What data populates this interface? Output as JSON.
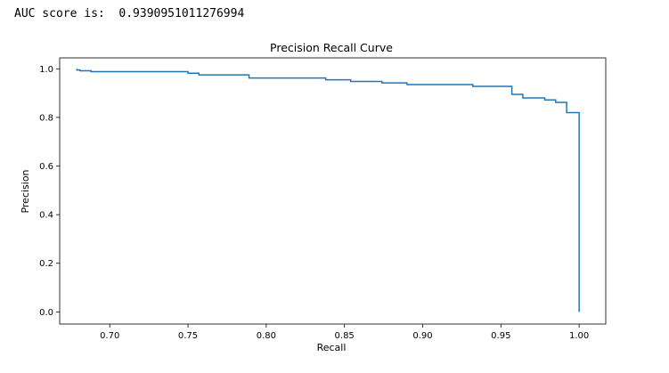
{
  "output": {
    "text": "AUC score is:  0.9390951011276994"
  },
  "chart_data": {
    "type": "line",
    "title": "Precision Recall Curve",
    "xlabel": "Recall",
    "ylabel": "Precision",
    "xlim": [
      0.668,
      1.017
    ],
    "ylim": [
      -0.05,
      1.045
    ],
    "xticks": [
      0.7,
      0.75,
      0.8,
      0.85,
      0.9,
      0.95,
      1.0
    ],
    "xtick_labels": [
      "0.70",
      "0.75",
      "0.80",
      "0.85",
      "0.90",
      "0.95",
      "1.00"
    ],
    "yticks": [
      0.0,
      0.2,
      0.4,
      0.6,
      0.8,
      1.0
    ],
    "ytick_labels": [
      "0.0",
      "0.2",
      "0.4",
      "0.6",
      "0.8",
      "1.0"
    ],
    "grid": false,
    "line_color": "#1f77b4",
    "series": [
      {
        "x": [
          0.679,
          0.679,
          0.681,
          0.681,
          0.688,
          0.688,
          0.75,
          0.75,
          0.757,
          0.757,
          0.789,
          0.789,
          0.838,
          0.838,
          0.854,
          0.854,
          0.874,
          0.874,
          0.89,
          0.89,
          0.932,
          0.932,
          0.957,
          0.957,
          0.964,
          0.964,
          0.978,
          0.978,
          0.985,
          0.985,
          0.992,
          0.992,
          1.0,
          1.0
        ],
        "y": [
          1.0,
          0.995,
          0.995,
          0.992,
          0.992,
          0.988,
          0.988,
          0.982,
          0.982,
          0.975,
          0.975,
          0.962,
          0.962,
          0.955,
          0.955,
          0.948,
          0.948,
          0.942,
          0.942,
          0.935,
          0.935,
          0.928,
          0.928,
          0.895,
          0.895,
          0.88,
          0.88,
          0.872,
          0.872,
          0.862,
          0.862,
          0.82,
          0.82,
          0.0
        ]
      }
    ]
  }
}
